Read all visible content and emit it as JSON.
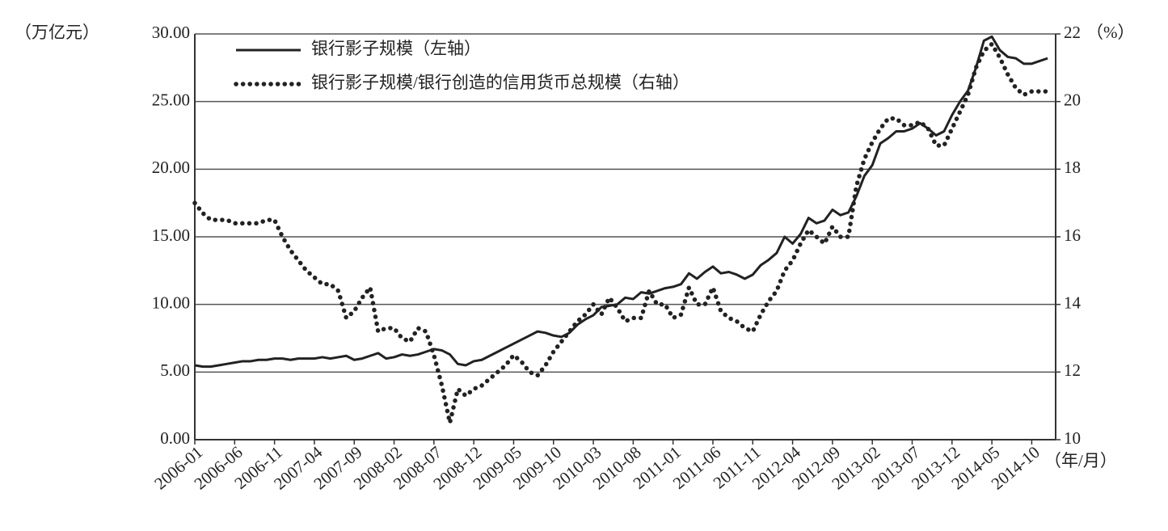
{
  "chart_data": {
    "type": "line",
    "y_label": "（万亿元）",
    "y2_label": "（%）",
    "x_label": "（年/月）",
    "categories": [
      "2006-01",
      null,
      null,
      null,
      null,
      "2006-06",
      null,
      null,
      null,
      null,
      "2006-11",
      null,
      null,
      null,
      null,
      "2007-04",
      null,
      null,
      null,
      null,
      "2007-09",
      null,
      null,
      null,
      null,
      "2008-02",
      null,
      null,
      null,
      null,
      "2008-07",
      null,
      null,
      null,
      null,
      "2008-12",
      null,
      null,
      null,
      null,
      "2009-05",
      null,
      null,
      null,
      null,
      "2009-10",
      null,
      null,
      null,
      null,
      "2010-03",
      null,
      null,
      null,
      null,
      "2010-08",
      null,
      null,
      null,
      null,
      "2011-01",
      null,
      null,
      null,
      null,
      "2011-06",
      null,
      null,
      null,
      null,
      "2011-11",
      null,
      null,
      null,
      null,
      "2012-04",
      null,
      null,
      null,
      null,
      "2012-09",
      null,
      null,
      null,
      null,
      "2013-02",
      null,
      null,
      null,
      null,
      "2013-07",
      null,
      null,
      null,
      null,
      "2013-12",
      null,
      null,
      null,
      null,
      "2014-05",
      null,
      null,
      null,
      null,
      "2014-10",
      null,
      null
    ],
    "series": [
      {
        "name": "银行影子规模（左轴）",
        "color": "#222222",
        "style": "solid",
        "values": [
          5.5,
          5.4,
          5.4,
          5.5,
          5.6,
          5.7,
          5.8,
          5.8,
          5.9,
          5.9,
          6.0,
          6.0,
          5.9,
          6.0,
          6.0,
          6.0,
          6.1,
          6.0,
          6.1,
          6.2,
          5.9,
          6.0,
          6.2,
          6.4,
          6.0,
          6.1,
          6.3,
          6.2,
          6.3,
          6.5,
          6.7,
          6.6,
          6.3,
          5.6,
          5.5,
          5.8,
          5.9,
          6.2,
          6.5,
          6.8,
          7.1,
          7.4,
          7.7,
          8.0,
          7.9,
          7.7,
          7.6,
          7.9,
          8.5,
          8.9,
          9.2,
          9.8,
          9.9,
          10.0,
          10.5,
          10.4,
          10.9,
          10.8,
          11.0,
          11.2,
          11.3,
          11.5,
          12.3,
          11.9,
          12.4,
          12.8,
          12.3,
          12.4,
          12.2,
          11.9,
          12.2,
          12.9,
          13.3,
          13.8,
          15.0,
          14.5,
          15.2,
          16.4,
          16.0,
          16.2,
          17.0,
          16.6,
          16.8,
          18.0,
          19.5,
          20.3,
          21.9,
          22.3,
          22.8,
          22.8,
          23.0,
          23.4,
          23.0,
          22.5,
          22.8,
          24.0,
          25.0,
          25.8,
          27.5,
          29.5,
          29.8,
          28.8,
          28.3,
          28.2,
          27.8,
          27.8,
          28.0,
          28.2
        ]
      },
      {
        "name": "银行影子规模/银行创造的信用货币总规模（右轴）",
        "color": "#222222",
        "style": "dotted",
        "axis": "y2",
        "values": [
          17.0,
          16.7,
          16.5,
          16.5,
          16.5,
          16.4,
          16.4,
          16.4,
          16.4,
          16.5,
          16.5,
          16.0,
          15.6,
          15.3,
          15.0,
          14.8,
          14.6,
          14.6,
          14.4,
          13.6,
          13.8,
          14.2,
          14.5,
          13.2,
          13.3,
          13.3,
          13.0,
          12.9,
          13.3,
          13.2,
          12.5,
          11.6,
          10.5,
          11.5,
          11.3,
          11.5,
          11.6,
          11.8,
          12.0,
          12.2,
          12.5,
          12.3,
          12.0,
          11.9,
          12.2,
          12.6,
          12.9,
          13.2,
          13.5,
          13.7,
          14.0,
          13.7,
          14.2,
          13.9,
          13.5,
          13.6,
          13.6,
          14.4,
          14.0,
          14.0,
          13.6,
          13.7,
          14.5,
          14.0,
          14.0,
          14.5,
          13.8,
          13.6,
          13.5,
          13.3,
          13.2,
          13.7,
          14.1,
          14.4,
          15.0,
          15.3,
          15.8,
          16.2,
          16.0,
          15.8,
          16.3,
          16.0,
          16.0,
          17.5,
          18.3,
          18.8,
          19.2,
          19.5,
          19.5,
          19.3,
          19.3,
          19.4,
          19.2,
          18.7,
          18.7,
          19.2,
          19.7,
          20.2,
          21.0,
          21.5,
          21.7,
          21.3,
          20.8,
          20.4,
          20.2,
          20.3,
          20.3,
          20.3
        ]
      }
    ],
    "ylim": [
      0,
      30
    ],
    "yticks": [
      {
        "value": 0,
        "label": "0.00"
      },
      {
        "value": 5,
        "label": "5.00"
      },
      {
        "value": 10,
        "label": "10.00"
      },
      {
        "value": 15,
        "label": "15.00"
      },
      {
        "value": 20,
        "label": "20.00"
      },
      {
        "value": 25,
        "label": "25.00"
      },
      {
        "value": 30,
        "label": "30.00"
      }
    ],
    "y2lim": [
      10,
      22
    ],
    "y2ticks": [
      10,
      12,
      14,
      16,
      18,
      20,
      22
    ],
    "grid": true
  }
}
